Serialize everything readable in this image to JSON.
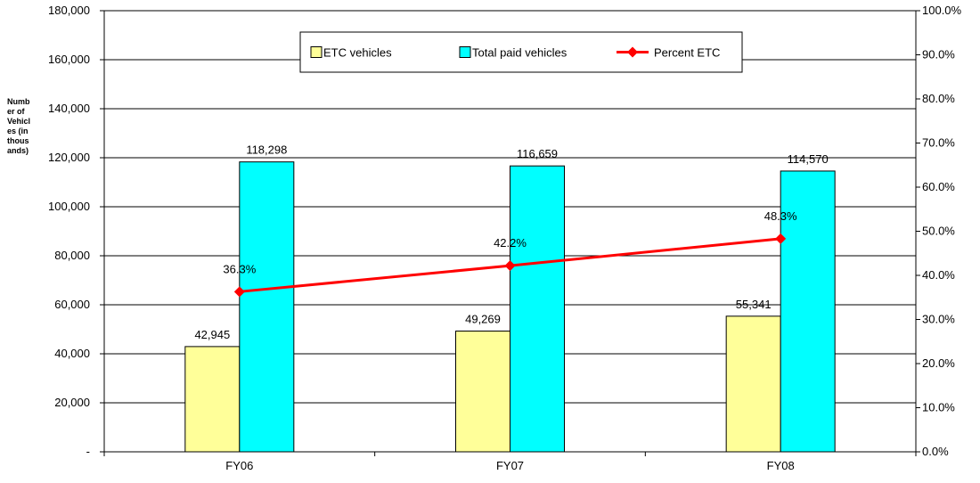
{
  "chart_data": {
    "type": "bar",
    "categories": [
      "FY06",
      "FY07",
      "FY08"
    ],
    "ylabel": "Number of Vehicles (in thousands)",
    "ylim": [
      0,
      180000
    ],
    "y_ticks": [
      "-",
      "20,000",
      "40,000",
      "60,000",
      "80,000",
      "100,000",
      "120,000",
      "140,000",
      "160,000",
      "180,000"
    ],
    "y2lim": [
      0,
      100
    ],
    "y2_ticks": [
      "0.0%",
      "10.0%",
      "20.0%",
      "30.0%",
      "40.0%",
      "50.0%",
      "60.0%",
      "70.0%",
      "80.0%",
      "90.0%",
      "100.0%"
    ],
    "grid": true,
    "legend_position": "top-center",
    "series": [
      {
        "name": "ETC vehicles",
        "kind": "bar",
        "axis": "left",
        "color": "#ffff99",
        "values": [
          42945,
          49269,
          55341
        ],
        "labels": [
          "42,945",
          "49,269",
          "55,341"
        ]
      },
      {
        "name": "Total paid vehicles",
        "kind": "bar",
        "axis": "left",
        "color": "#00ffff",
        "values": [
          118298,
          116659,
          114570
        ],
        "labels": [
          "118,298",
          "116,659",
          "114,570"
        ]
      },
      {
        "name": "Percent ETC",
        "kind": "line",
        "axis": "right",
        "color": "#ff0000",
        "values": [
          36.3,
          42.2,
          48.3
        ],
        "labels": [
          "36.3%",
          "42.2%",
          "48.3%"
        ]
      }
    ]
  }
}
